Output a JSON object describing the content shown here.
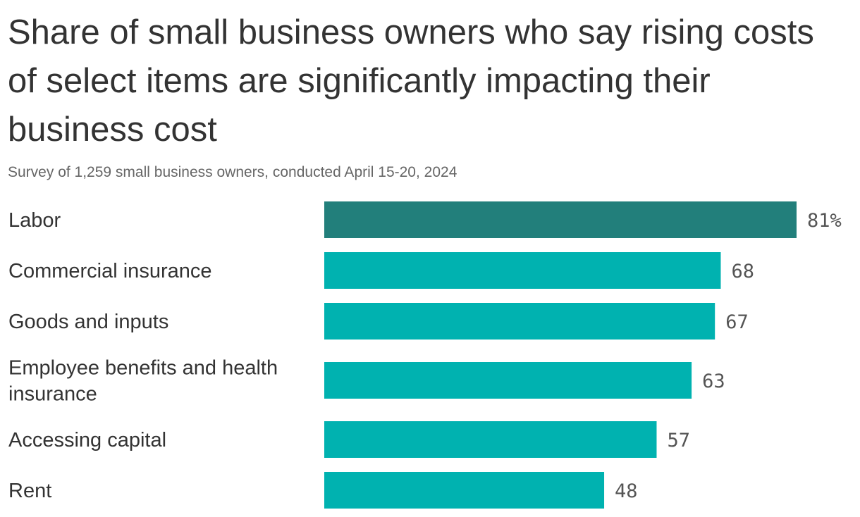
{
  "chart_data": {
    "type": "bar",
    "orientation": "horizontal",
    "title": "Share of small business owners who say rising costs of select items are significantly impacting their business cost",
    "subtitle": "Survey of 1,259 small business owners, conducted April 15-20, 2024",
    "categories": [
      "Labor",
      "Commercial insurance",
      "Goods and inputs",
      "Employee benefits and health insurance",
      "Accessing capital",
      "Rent"
    ],
    "values": [
      81,
      68,
      67,
      63,
      57,
      48
    ],
    "value_labels": [
      "81%",
      "68",
      "67",
      "63",
      "57",
      "48"
    ],
    "highlight_index": 0,
    "colors": {
      "highlight": "#227F7B",
      "default": "#00B2B0"
    },
    "xlim": [
      0,
      81
    ],
    "grid": false,
    "legend": "none"
  }
}
